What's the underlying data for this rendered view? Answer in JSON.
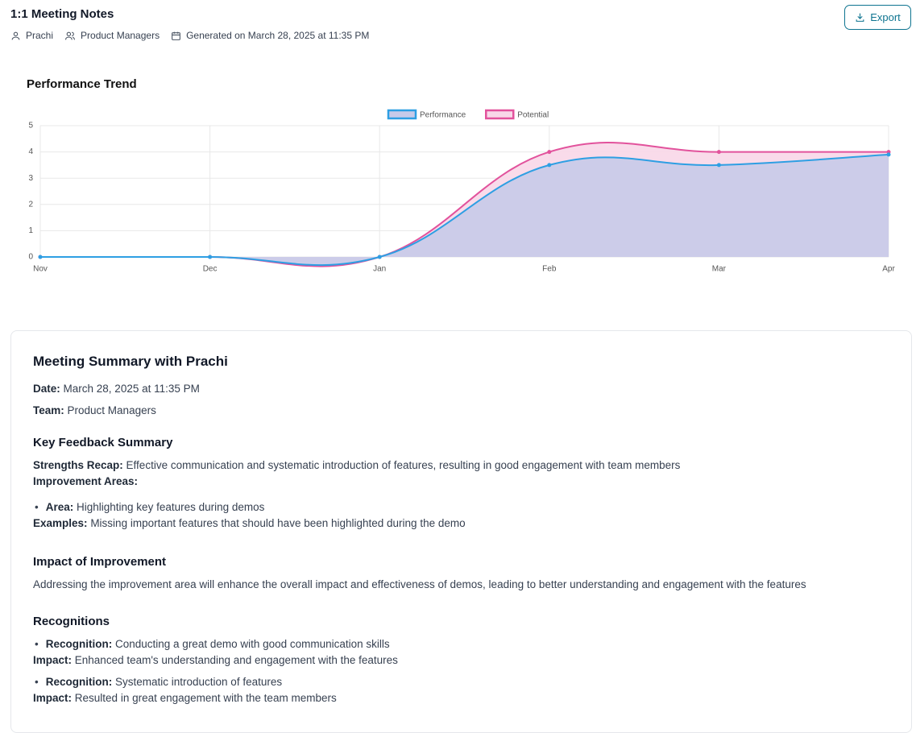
{
  "header": {
    "title": "1:1 Meeting Notes",
    "user": "Prachi",
    "team": "Product Managers",
    "generated": "Generated on March 28, 2025 at 11:35 PM",
    "export": "Export"
  },
  "chart_data": {
    "type": "line",
    "title": "Performance Trend",
    "categories": [
      "Nov",
      "Dec",
      "Jan",
      "Feb",
      "Mar",
      "Apr"
    ],
    "series": [
      {
        "name": "Performance",
        "color": "#2e9fe3",
        "fill": "#c7cae9",
        "values": [
          0,
          0,
          0,
          3.5,
          3.5,
          3.9
        ]
      },
      {
        "name": "Potential",
        "color": "#e2529c",
        "fill": "#f8d7e8",
        "values": [
          0,
          0,
          0,
          4,
          4,
          4
        ]
      }
    ],
    "ylim": [
      0,
      5
    ],
    "yticks": [
      0,
      1,
      2,
      3,
      4,
      5
    ],
    "grid": true,
    "legend": "top"
  },
  "summary": {
    "title": "Meeting Summary with Prachi",
    "date": {
      "label": "Date:",
      "text": "March 28, 2025 at 11:35 PM"
    },
    "team": {
      "label": "Team:",
      "text": "Product Managers"
    },
    "feedback": {
      "heading": "Key Feedback Summary",
      "strengths": {
        "label": "Strengths Recap:",
        "text": "Effective communication and systematic introduction of features, resulting in good engagement with team members"
      },
      "improvement_label": "Improvement Areas:",
      "area": {
        "label": "Area:",
        "text": "Highlighting key features during demos"
      },
      "examples": {
        "label": "Examples:",
        "text": "Missing important features that should have been highlighted during the demo"
      }
    },
    "impact": {
      "heading": "Impact of Improvement",
      "text": "Addressing the improvement area will enhance the overall impact and effectiveness of demos, leading to better understanding and engagement with the features"
    },
    "recognitions": {
      "heading": "Recognitions",
      "items": [
        {
          "label": "Recognition:",
          "text": "Conducting a great demo with good communication skills",
          "impact_label": "Impact:",
          "impact": "Enhanced team's understanding and engagement with the features"
        },
        {
          "label": "Recognition:",
          "text": "Systematic introduction of features",
          "impact_label": "Impact:",
          "impact": "Resulted in great engagement with the team members"
        }
      ]
    }
  }
}
